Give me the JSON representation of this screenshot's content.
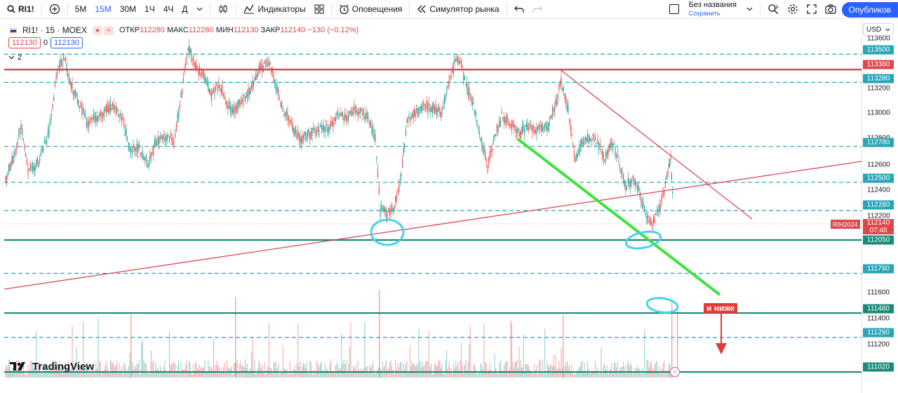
{
  "toolbar": {
    "symbol": "RI1!",
    "timeframes": [
      "5M",
      "15M",
      "30M",
      "1Ч",
      "4Ч",
      "Д"
    ],
    "active_timeframe": "15M",
    "indicators_label": "Индикаторы",
    "alerts_label": "Оповещения",
    "replay_label": "Симулятор рынка",
    "layout_title": "Без названия",
    "layout_status": "Сохранить",
    "publish_label": "Опубликов"
  },
  "legend": {
    "symbol": "RI1! · 15 · MOEX",
    "open_key": "ОТКР",
    "open_val": "112280",
    "high_key": "МАКС",
    "high_val": "112280",
    "low_key": "МИН",
    "low_val": "112130",
    "close_key": "ЗАКР",
    "close_val": "112140",
    "change": "−130 (−0.12%)",
    "bid": "112130",
    "spread": "0",
    "ask": "112130",
    "indicators_count": "2"
  },
  "scale": {
    "currency": "USD",
    "ticks": [
      "113600",
      "113200",
      "113000",
      "112800",
      "112600",
      "112400",
      "112200",
      "111600",
      "111400",
      "111200"
    ]
  },
  "levels": [
    {
      "price": "113500",
      "style": "cyan",
      "kind": "dashed"
    },
    {
      "price": "113380",
      "style": "red",
      "kind": "solid"
    },
    {
      "price": "113280",
      "style": "cyan",
      "kind": "dashed"
    },
    {
      "price": "112780",
      "style": "cyan",
      "kind": "dashed"
    },
    {
      "price": "112500",
      "style": "cyan",
      "kind": "dashed"
    },
    {
      "price": "112280",
      "style": "cyan",
      "kind": "dashed"
    },
    {
      "price": "112050",
      "style": "teal",
      "kind": "solid"
    },
    {
      "price": "111790",
      "style": "cyan",
      "kind": "dashed"
    },
    {
      "price": "111480",
      "style": "teal",
      "kind": "solid"
    },
    {
      "price": "111290",
      "style": "cyan",
      "kind": "dashed"
    },
    {
      "price": "111020",
      "style": "teal",
      "kind": "solid"
    }
  ],
  "last_price": {
    "contract": "RIH2024",
    "price": "112140",
    "countdown": "07:46"
  },
  "annotation": {
    "text": "и ниже"
  },
  "watermark": "TradingView",
  "colors": {
    "up": "#26a69a",
    "down": "#ef5350",
    "accent": "#2962ff",
    "level_cyan": "#26a6b8",
    "level_red": "#d84a55",
    "level_teal": "#1a8a7a",
    "trend_green": "#3fe23f",
    "arrow_red": "#e53935",
    "ellipse": "#49d2ea"
  },
  "icons": [
    "search-icon",
    "add-icon",
    "candles-icon",
    "indicators-icon",
    "templates-icon",
    "alarm-icon",
    "replay-icon",
    "undo-icon",
    "redo-icon",
    "chevron-down-icon",
    "quick-search-icon",
    "settings-icon",
    "fullscreen-icon",
    "camera-icon",
    "tradingview-logo-icon",
    "flash-icon"
  ]
}
